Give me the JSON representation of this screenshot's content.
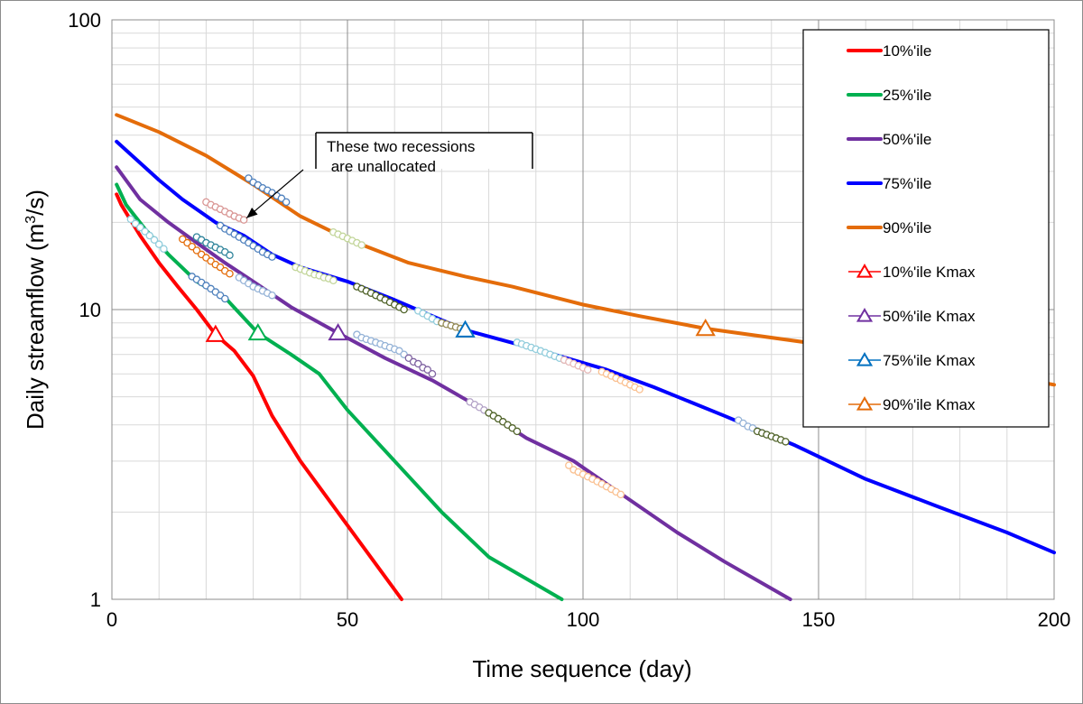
{
  "chart_data": {
    "type": "line",
    "xlabel": "Time sequence (day)",
    "ylabel_prefix": "Daily streamflow (m",
    "ylabel_sup": "3",
    "ylabel_suffix": "/s)",
    "xlim": [
      0,
      200
    ],
    "ylim": [
      1,
      100
    ],
    "y_scale": "log",
    "grid": true,
    "legend_position": "top-right",
    "x_ticks": [
      "0",
      "50",
      "100",
      "150",
      "200"
    ],
    "y_ticks": [
      "1",
      "10",
      "100"
    ],
    "annotation": {
      "lines": [
        "These two recessions",
        " are unallocated"
      ],
      "arrow_target": [
        28,
        21
      ]
    },
    "series": [
      {
        "name": "10%'ile",
        "color": "#ff0000",
        "points": [
          [
            1,
            25
          ],
          [
            2,
            23
          ],
          [
            6,
            18
          ],
          [
            10,
            14.5
          ],
          [
            14,
            12
          ],
          [
            18,
            10
          ],
          [
            22,
            8.2
          ],
          [
            26,
            7.2
          ],
          [
            30,
            5.9
          ],
          [
            34,
            4.3
          ],
          [
            40,
            3
          ],
          [
            50,
            1.8
          ],
          [
            61.5,
            1
          ]
        ]
      },
      {
        "name": "25%'ile",
        "color": "#00b050",
        "points": [
          [
            1,
            27
          ],
          [
            3,
            23
          ],
          [
            7,
            19
          ],
          [
            12,
            15.5
          ],
          [
            18,
            12.5
          ],
          [
            24,
            11
          ],
          [
            31,
            8.3
          ],
          [
            38,
            7
          ],
          [
            44,
            6
          ],
          [
            50,
            4.5
          ],
          [
            60,
            3
          ],
          [
            70,
            2
          ],
          [
            80,
            1.4
          ],
          [
            95.5,
            1
          ]
        ]
      },
      {
        "name": "50%'ile",
        "color": "#7030a0",
        "points": [
          [
            1,
            31
          ],
          [
            6,
            24
          ],
          [
            12,
            20
          ],
          [
            18,
            17
          ],
          [
            24,
            14.5
          ],
          [
            30,
            12.5
          ],
          [
            38,
            10.2
          ],
          [
            48,
            8.3
          ],
          [
            58,
            6.8
          ],
          [
            68,
            5.7
          ],
          [
            78,
            4.6
          ],
          [
            88,
            3.6
          ],
          [
            98,
            3
          ],
          [
            110,
            2.2
          ],
          [
            120,
            1.7
          ],
          [
            130,
            1.35
          ],
          [
            144,
            1
          ]
        ]
      },
      {
        "name": "75%'ile",
        "color": "#0000ff",
        "points": [
          [
            1,
            38
          ],
          [
            10,
            28
          ],
          [
            15,
            24
          ],
          [
            22,
            20
          ],
          [
            28,
            18
          ],
          [
            34,
            15.5
          ],
          [
            40,
            14
          ],
          [
            50,
            12.5
          ],
          [
            60,
            10.8
          ],
          [
            75,
            8.5
          ],
          [
            90,
            7.3
          ],
          [
            105,
            6.2
          ],
          [
            115,
            5.4
          ],
          [
            130,
            4.3
          ],
          [
            145,
            3.4
          ],
          [
            160,
            2.6
          ],
          [
            175,
            2.1
          ],
          [
            190,
            1.7
          ],
          [
            200,
            1.45
          ]
        ]
      },
      {
        "name": "90%'ile",
        "color": "#e46c0a",
        "points": [
          [
            1,
            47
          ],
          [
            10,
            41
          ],
          [
            20,
            34
          ],
          [
            30,
            27
          ],
          [
            40,
            21
          ],
          [
            50,
            17.5
          ],
          [
            63,
            14.5
          ],
          [
            75,
            13
          ],
          [
            85,
            12
          ],
          [
            100,
            10.4
          ],
          [
            112,
            9.5
          ],
          [
            126,
            8.6
          ],
          [
            150,
            7.6
          ],
          [
            170,
            6.8
          ],
          [
            185,
            6.1
          ],
          [
            200,
            5.5
          ]
        ]
      }
    ],
    "kmax_series": [
      {
        "name": "10%'ile Kmax",
        "color": "#ff0000",
        "x": 22,
        "y": 8.2
      },
      {
        "name": "50%'ile Kmax",
        "color": "#7030a0",
        "x": 48,
        "y": 8.3
      },
      {
        "name": "75%'ile Kmax",
        "color": "#0070c0",
        "x": 75,
        "y": 8.5
      },
      {
        "name": "90%'ile Kmax",
        "color": "#e46c0a",
        "x": 126,
        "y": 8.6
      }
    ],
    "extra_kmax_marker": {
      "color": "#00b050",
      "x": 31,
      "y": 8.3
    },
    "recession_segments": [
      {
        "color": "#4f81bd",
        "points": [
          [
            29,
            28.4
          ],
          [
            30,
            27.5
          ],
          [
            31,
            26.9
          ],
          [
            32,
            26.3
          ],
          [
            33,
            25.8
          ],
          [
            34,
            25.3
          ],
          [
            35,
            24.7
          ],
          [
            36,
            24.2
          ],
          [
            37,
            23.5
          ]
        ]
      },
      {
        "color": "#d99694",
        "points": [
          [
            20,
            23.5
          ],
          [
            21,
            23
          ],
          [
            22,
            22.6
          ],
          [
            23,
            22.2
          ],
          [
            24,
            21.8
          ],
          [
            25,
            21.4
          ],
          [
            26,
            21
          ],
          [
            27,
            20.7
          ],
          [
            28,
            20.4
          ]
        ]
      },
      {
        "color": "#31859c",
        "points": [
          [
            18,
            17.8
          ],
          [
            19,
            17.4
          ],
          [
            20,
            17
          ],
          [
            21,
            16.7
          ],
          [
            22,
            16.4
          ],
          [
            23,
            16.1
          ],
          [
            24,
            15.8
          ],
          [
            25,
            15.4
          ]
        ]
      },
      {
        "color": "#4f81bd",
        "points": [
          [
            23,
            19.5
          ],
          [
            24,
            19
          ],
          [
            25,
            18.6
          ],
          [
            26,
            18.2
          ],
          [
            27,
            17.8
          ],
          [
            28,
            17.4
          ],
          [
            29,
            17
          ],
          [
            30,
            16.6
          ],
          [
            31,
            16.2
          ],
          [
            32,
            15.8
          ],
          [
            33,
            15.5
          ],
          [
            34,
            15.2
          ]
        ]
      },
      {
        "color": "#92cddc",
        "points": [
          [
            4,
            20.5
          ],
          [
            5,
            19.8
          ],
          [
            6,
            19.2
          ],
          [
            7,
            18.6
          ],
          [
            8,
            18
          ],
          [
            9,
            17.4
          ],
          [
            10,
            16.8
          ],
          [
            11,
            16.2
          ]
        ]
      },
      {
        "color": "#e46c0a",
        "points": [
          [
            15,
            17.5
          ],
          [
            16,
            17
          ],
          [
            17,
            16.5
          ],
          [
            18,
            16
          ],
          [
            19,
            15.5
          ],
          [
            20,
            15.1
          ],
          [
            21,
            14.7
          ],
          [
            22,
            14.3
          ],
          [
            23,
            14
          ],
          [
            24,
            13.6
          ],
          [
            25,
            13.3
          ]
        ]
      },
      {
        "color": "#4f81bd",
        "points": [
          [
            17,
            13
          ],
          [
            18,
            12.7
          ],
          [
            19,
            12.4
          ],
          [
            20,
            12.1
          ],
          [
            21,
            11.8
          ],
          [
            22,
            11.5
          ],
          [
            23,
            11.2
          ],
          [
            24,
            10.9
          ]
        ]
      },
      {
        "color": "#95b3d7",
        "points": [
          [
            27,
            12.9
          ],
          [
            28,
            12.6
          ],
          [
            29,
            12.3
          ],
          [
            30,
            12
          ],
          [
            31,
            11.8
          ],
          [
            32,
            11.6
          ],
          [
            33,
            11.4
          ],
          [
            34,
            11.2
          ]
        ]
      },
      {
        "color": "#c3d69b",
        "points": [
          [
            39,
            14
          ],
          [
            40,
            13.8
          ],
          [
            41,
            13.6
          ],
          [
            42,
            13.4
          ],
          [
            43,
            13.2
          ],
          [
            44,
            13.1
          ],
          [
            45,
            12.9
          ],
          [
            46,
            12.8
          ],
          [
            47,
            12.6
          ]
        ]
      },
      {
        "color": "#c3d69b",
        "points": [
          [
            47,
            18.5
          ],
          [
            48,
            18.2
          ],
          [
            49,
            17.9
          ],
          [
            50,
            17.6
          ],
          [
            51,
            17.3
          ],
          [
            52,
            17
          ],
          [
            53,
            16.7
          ]
        ]
      },
      {
        "color": "#4f6228",
        "points": [
          [
            52,
            12
          ],
          [
            53,
            11.8
          ],
          [
            54,
            11.6
          ],
          [
            55,
            11.4
          ],
          [
            56,
            11.2
          ],
          [
            57,
            11
          ],
          [
            58,
            10.8
          ],
          [
            59,
            10.6
          ],
          [
            60,
            10.4
          ],
          [
            61,
            10.2
          ],
          [
            62,
            10
          ]
        ]
      },
      {
        "color": "#95b3d7",
        "points": [
          [
            52,
            8.2
          ],
          [
            53,
            8
          ],
          [
            54,
            7.9
          ],
          [
            55,
            7.8
          ],
          [
            56,
            7.7
          ],
          [
            57,
            7.6
          ],
          [
            58,
            7.5
          ],
          [
            59,
            7.4
          ],
          [
            60,
            7.3
          ],
          [
            61,
            7.2
          ],
          [
            62,
            7
          ]
        ]
      },
      {
        "color": "#8064a2",
        "points": [
          [
            63,
            6.8
          ],
          [
            64,
            6.6
          ],
          [
            65,
            6.5
          ],
          [
            66,
            6.3
          ],
          [
            67,
            6.2
          ],
          [
            68,
            6
          ]
        ]
      },
      {
        "color": "#92cddc",
        "points": [
          [
            65,
            9.9
          ],
          [
            66,
            9.7
          ],
          [
            67,
            9.5
          ],
          [
            68,
            9.3
          ],
          [
            69,
            9.1
          ],
          [
            70,
            9
          ]
        ]
      },
      {
        "color": "#948a54",
        "points": [
          [
            70,
            9
          ],
          [
            71,
            8.9
          ],
          [
            72,
            8.8
          ],
          [
            73,
            8.7
          ],
          [
            74,
            8.6
          ]
        ]
      },
      {
        "color": "#b3a2c7",
        "points": [
          [
            76,
            4.8
          ],
          [
            77,
            4.7
          ],
          [
            78,
            4.6
          ],
          [
            79,
            4.5
          ]
        ]
      },
      {
        "color": "#4f6228",
        "points": [
          [
            80,
            4.4
          ],
          [
            81,
            4.3
          ],
          [
            82,
            4.2
          ],
          [
            83,
            4.1
          ],
          [
            84,
            4
          ],
          [
            85,
            3.9
          ],
          [
            86,
            3.8
          ]
        ]
      },
      {
        "color": "#92cddc",
        "points": [
          [
            86,
            7.7
          ],
          [
            87,
            7.6
          ],
          [
            88,
            7.5
          ],
          [
            89,
            7.4
          ],
          [
            90,
            7.3
          ],
          [
            91,
            7.2
          ],
          [
            92,
            7.1
          ],
          [
            93,
            7
          ],
          [
            94,
            6.9
          ],
          [
            95,
            6.8
          ],
          [
            96,
            6.7
          ]
        ]
      },
      {
        "color": "#e6b9b8",
        "points": [
          [
            96,
            6.7
          ],
          [
            97,
            6.6
          ],
          [
            98,
            6.5
          ],
          [
            99,
            6.4
          ],
          [
            100,
            6.3
          ],
          [
            101,
            6.2
          ]
        ]
      },
      {
        "color": "#fac090",
        "points": [
          [
            104,
            6.1
          ],
          [
            105,
            6
          ],
          [
            106,
            5.9
          ],
          [
            107,
            5.8
          ],
          [
            108,
            5.7
          ],
          [
            109,
            5.6
          ],
          [
            110,
            5.5
          ],
          [
            111,
            5.4
          ],
          [
            112,
            5.3
          ]
        ]
      },
      {
        "color": "#fac090",
        "points": [
          [
            97,
            2.9
          ],
          [
            98,
            2.8
          ],
          [
            99,
            2.75
          ],
          [
            100,
            2.7
          ],
          [
            101,
            2.65
          ],
          [
            102,
            2.6
          ],
          [
            103,
            2.55
          ],
          [
            104,
            2.5
          ],
          [
            105,
            2.45
          ],
          [
            106,
            2.4
          ],
          [
            107,
            2.35
          ],
          [
            108,
            2.3
          ]
        ]
      },
      {
        "color": "#95b3d7",
        "points": [
          [
            133,
            4.15
          ],
          [
            134,
            4.05
          ],
          [
            135,
            3.95
          ],
          [
            136,
            3.9
          ]
        ]
      },
      {
        "color": "#4f6228",
        "points": [
          [
            137,
            3.8
          ],
          [
            138,
            3.75
          ],
          [
            139,
            3.7
          ],
          [
            140,
            3.65
          ],
          [
            141,
            3.6
          ],
          [
            142,
            3.55
          ],
          [
            143,
            3.5
          ]
        ]
      }
    ]
  }
}
